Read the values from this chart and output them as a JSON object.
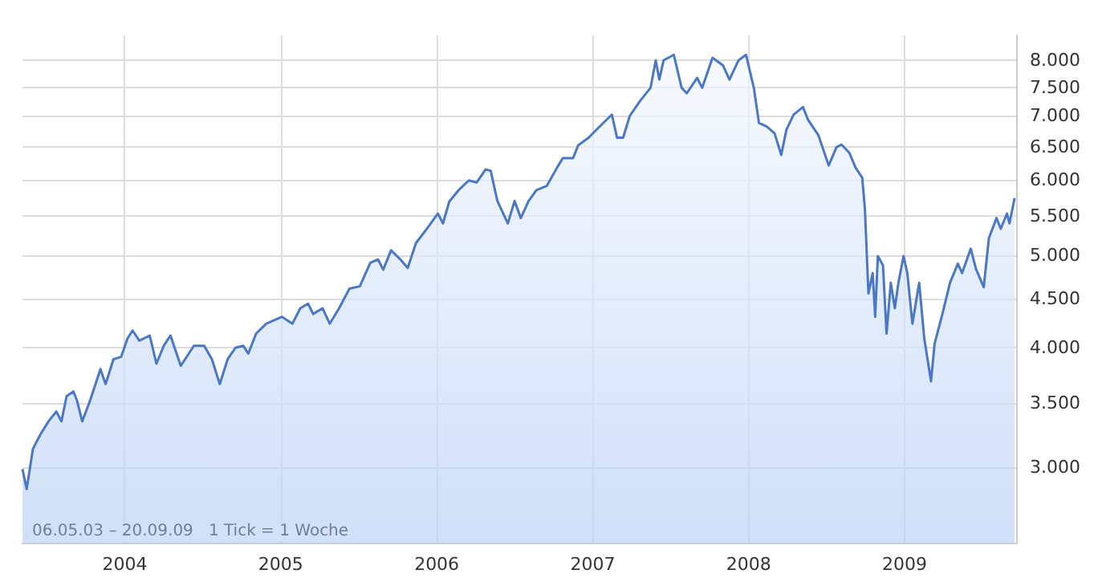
{
  "chart_data": {
    "type": "area",
    "annotations": [
      "06.05.03 – 20.09.09   1 Tick = 1 Woche"
    ],
    "x": [
      2003.344,
      2003.371,
      2003.411,
      2003.461,
      2003.511,
      2003.561,
      2003.594,
      2003.627,
      2003.671,
      2003.694,
      2003.727,
      2003.777,
      2003.844,
      2003.877,
      2003.927,
      2003.977,
      2004.017,
      2004.05,
      2004.093,
      2004.16,
      2004.203,
      2004.25,
      2004.293,
      2004.359,
      2004.443,
      2004.509,
      2004.559,
      2004.609,
      2004.659,
      2004.709,
      2004.759,
      2004.792,
      2004.842,
      2004.908,
      2005.008,
      2005.075,
      2005.125,
      2005.175,
      2005.208,
      2005.268,
      2005.314,
      2005.374,
      2005.441,
      2005.507,
      2005.574,
      2005.624,
      2005.657,
      2005.707,
      2005.767,
      2005.814,
      2005.867,
      2005.94,
      2006.007,
      2006.04,
      2006.08,
      2006.14,
      2006.206,
      2006.256,
      2006.313,
      2006.346,
      2006.389,
      2006.456,
      2006.499,
      2006.539,
      2006.589,
      2006.639,
      2006.705,
      2006.772,
      2006.808,
      2006.874,
      2006.907,
      2006.974,
      2007.04,
      2007.123,
      2007.156,
      2007.195,
      2007.238,
      2007.305,
      2007.371,
      2007.404,
      2007.427,
      2007.454,
      2007.52,
      2007.57,
      2007.603,
      2007.669,
      2007.702,
      2007.768,
      2007.834,
      2007.877,
      2007.934,
      2007.983,
      2008.033,
      2008.066,
      2008.116,
      2008.166,
      2008.209,
      2008.242,
      2008.288,
      2008.348,
      2008.381,
      2008.447,
      2008.513,
      2008.563,
      2008.596,
      2008.646,
      2008.685,
      2008.728,
      2008.745,
      2008.768,
      2008.795,
      2008.811,
      2008.828,
      2008.861,
      2008.884,
      2008.911,
      2008.937,
      2008.96,
      2008.993,
      2009.017,
      2009.05,
      2009.093,
      2009.126,
      2009.169,
      2009.192,
      2009.242,
      2009.291,
      2009.341,
      2009.368,
      2009.424,
      2009.457,
      2009.507,
      2009.54,
      2009.589,
      2009.616,
      2009.656,
      2009.672,
      2009.705
    ],
    "series": [
      {
        "color": "#4a78c4",
        "values": [
          2985,
          2845,
          3135,
          3250,
          3350,
          3430,
          3350,
          3560,
          3600,
          3520,
          3350,
          3520,
          3800,
          3665,
          3890,
          3915,
          4090,
          4170,
          4070,
          4120,
          3850,
          4020,
          4120,
          3830,
          4020,
          4020,
          3890,
          3665,
          3890,
          4000,
          4020,
          3945,
          4140,
          4240,
          4310,
          4240,
          4400,
          4450,
          4340,
          4400,
          4240,
          4400,
          4615,
          4640,
          4910,
          4950,
          4830,
          5060,
          4950,
          4850,
          5150,
          5340,
          5530,
          5400,
          5690,
          5850,
          5990,
          5960,
          6150,
          6130,
          5700,
          5400,
          5700,
          5470,
          5700,
          5850,
          5910,
          6180,
          6320,
          6320,
          6520,
          6640,
          6810,
          7020,
          6640,
          6640,
          7000,
          7260,
          7490,
          8000,
          7640,
          8000,
          8110,
          7490,
          7390,
          7670,
          7490,
          8050,
          7910,
          7640,
          8000,
          8110,
          7490,
          6880,
          6820,
          6710,
          6370,
          6770,
          7020,
          7150,
          6930,
          6680,
          6210,
          6490,
          6530,
          6400,
          6180,
          6030,
          5600,
          4560,
          4790,
          4310,
          4990,
          4880,
          4140,
          4680,
          4400,
          4680,
          4990,
          4790,
          4240,
          4680,
          4090,
          3690,
          4040,
          4340,
          4680,
          4900,
          4790,
          5080,
          4840,
          4630,
          5210,
          5470,
          5330,
          5530,
          5400,
          5740
        ]
      }
    ],
    "xlim": [
      2003.344,
      2009.72
    ],
    "xticks": [
      2004,
      2005,
      2006,
      2007,
      2008,
      2009
    ],
    "ylim": [
      2500,
      8500
    ],
    "log": true,
    "yticks": [
      {
        "value": 3000,
        "label": "3.000"
      },
      {
        "value": 3500,
        "label": "3.500"
      },
      {
        "value": 4000,
        "label": "4.000"
      },
      {
        "value": 4500,
        "label": "4.500"
      },
      {
        "value": 5000,
        "label": "5.000"
      },
      {
        "value": 5500,
        "label": "5.500"
      },
      {
        "value": 6000,
        "label": "6.000"
      },
      {
        "value": 6500,
        "label": "6.500"
      },
      {
        "value": 7000,
        "label": "7.000"
      },
      {
        "value": 7500,
        "label": "7.500"
      },
      {
        "value": 8000,
        "label": "8.000"
      }
    ],
    "grid": true
  }
}
